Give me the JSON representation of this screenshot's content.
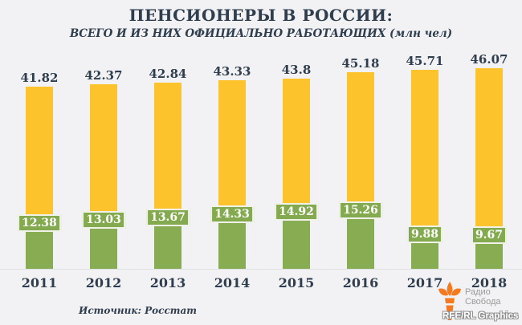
{
  "header": {
    "title": "ПЕНСИОНЕРЫ В РОССИИ:",
    "subtitle": "ВСЕГО И ИЗ НИХ ОФИЦИАЛЬНО РАБОТАЮЩИХ (млн чел)"
  },
  "chart_data": {
    "type": "bar",
    "categories": [
      "2011",
      "2012",
      "2013",
      "2014",
      "2015",
      "2016",
      "2017",
      "2018"
    ],
    "series": [
      {
        "name": "total",
        "values": [
          41.82,
          42.37,
          42.84,
          43.33,
          43.8,
          45.18,
          45.71,
          46.07
        ]
      },
      {
        "name": "working",
        "values": [
          12.38,
          13.03,
          13.67,
          14.33,
          14.92,
          15.26,
          9.88,
          9.67
        ]
      }
    ],
    "title": "ПЕНСИОНЕРЫ В РОССИИ: ВСЕГО И ИЗ НИХ ОФИЦИАЛЬНО РАБОТАЮЩИХ (млн чел)",
    "xlabel": "",
    "ylabel": "",
    "ylim": [
      0,
      46.07
    ],
    "grid": false,
    "legend": "none",
    "data_labels": true
  },
  "footer": {
    "source": "Источник: Росстат",
    "credit": "RFE/RL Graphics",
    "logo_line1": "Радио",
    "logo_line2": "Свобода"
  },
  "colors": {
    "background": "#f2f2f4",
    "total_bar": "#fcc32d",
    "working_bar": "#87ac52",
    "working_label_bg": "#84aa4f",
    "working_label_border": "#f1f3eb",
    "text": "#2f3e4e",
    "logo_orange": "#f4791f"
  }
}
